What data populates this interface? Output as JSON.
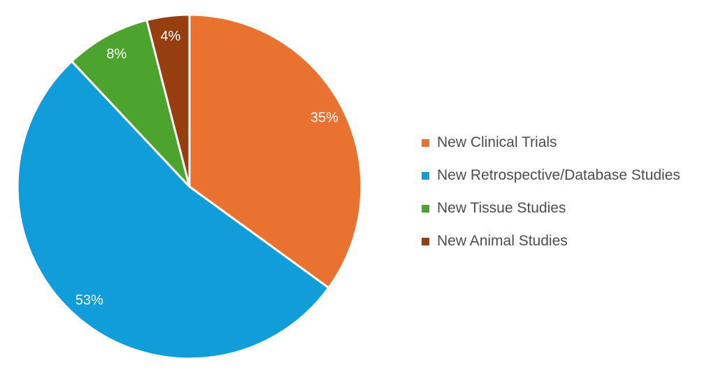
{
  "chart_data": {
    "type": "pie",
    "title": "",
    "unit": "%",
    "direction": "clockwise",
    "start_angle_deg": 0,
    "legend_position": "right",
    "categories": [
      "New Clinical Trials",
      "New Retrospective/Database Studies",
      "New Tissue Studies",
      "New Animal Studies"
    ],
    "values": [
      35,
      53,
      8,
      4
    ],
    "slices": [
      {
        "label": "New Clinical Trials",
        "value": 35,
        "display_label": "35%",
        "color": "#E97231"
      },
      {
        "label": "New Retrospective/Database Studies",
        "value": 53,
        "display_label": "53%",
        "color": "#119DD9"
      },
      {
        "label": "New Tissue Studies",
        "value": 8,
        "display_label": "8%",
        "color": "#4CA42E"
      },
      {
        "label": "New Animal Studies",
        "value": 4,
        "display_label": "4%",
        "color": "#973E10"
      }
    ],
    "colors": {
      "slice_label_text": "#FFFFFF",
      "legend_text": "#4D4D4D",
      "background": "#FFFFFF",
      "slice_border": "#FFFFFF"
    }
  }
}
